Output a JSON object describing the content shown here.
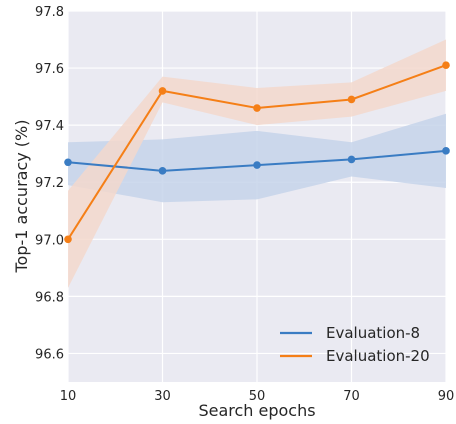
{
  "chart_data": {
    "type": "line",
    "title": "",
    "xlabel": "Search epochs",
    "ylabel": "Top-1 accuracy (%)",
    "x": [
      10,
      30,
      50,
      70,
      90
    ],
    "xlim": [
      10,
      90
    ],
    "ylim": [
      96.5,
      97.8
    ],
    "xticks": [
      "10",
      "30",
      "50",
      "70",
      "90"
    ],
    "yticks": [
      "96.6",
      "96.8",
      "97.0",
      "97.2",
      "97.4",
      "97.6",
      "97.8"
    ],
    "grid": true,
    "background": "#eaeaf2",
    "legend_position": "bottom-right",
    "series": [
      {
        "name": "Evaluation-8",
        "color": "#3a7cc3",
        "band_color": "#c5d3ea",
        "values": [
          97.27,
          97.24,
          97.26,
          97.28,
          97.31
        ],
        "upper": [
          97.34,
          97.35,
          97.38,
          97.34,
          97.44
        ],
        "lower": [
          97.19,
          97.13,
          97.14,
          97.22,
          97.18
        ]
      },
      {
        "name": "Evaluation-20",
        "color": "#f57f17",
        "band_color": "#f3d8cd",
        "values": [
          97.0,
          97.52,
          97.46,
          97.49,
          97.61
        ],
        "upper": [
          97.17,
          97.57,
          97.53,
          97.55,
          97.7
        ],
        "lower": [
          96.83,
          97.48,
          97.4,
          97.43,
          97.52
        ]
      }
    ]
  }
}
